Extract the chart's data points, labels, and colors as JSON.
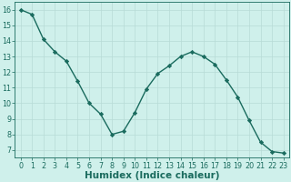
{
  "x": [
    0,
    1,
    2,
    3,
    4,
    5,
    6,
    7,
    8,
    9,
    10,
    11,
    12,
    13,
    14,
    15,
    16,
    17,
    18,
    19,
    20,
    21,
    22,
    23
  ],
  "y": [
    16.0,
    15.7,
    14.1,
    13.3,
    12.7,
    11.4,
    10.0,
    9.3,
    8.0,
    8.2,
    9.4,
    10.9,
    11.9,
    12.4,
    13.0,
    13.3,
    13.0,
    12.5,
    11.5,
    10.4,
    8.9,
    7.5,
    6.9,
    6.8
  ],
  "line_color": "#1a6b5e",
  "marker": "D",
  "marker_size": 2.2,
  "bg_color": "#cff0eb",
  "grid_color": "#b8dbd6",
  "xlabel": "Humidex (Indice chaleur)",
  "xlim": [
    -0.5,
    23.5
  ],
  "ylim": [
    6.5,
    16.5
  ],
  "yticks": [
    7,
    8,
    9,
    10,
    11,
    12,
    13,
    14,
    15,
    16
  ],
  "xticks": [
    0,
    1,
    2,
    3,
    4,
    5,
    6,
    7,
    8,
    9,
    10,
    11,
    12,
    13,
    14,
    15,
    16,
    17,
    18,
    19,
    20,
    21,
    22,
    23
  ],
  "tick_label_fontsize": 5.8,
  "xlabel_fontsize": 7.5,
  "tick_color": "#1a6b5e",
  "spine_color": "#1a6b5e",
  "line_width": 1.0
}
